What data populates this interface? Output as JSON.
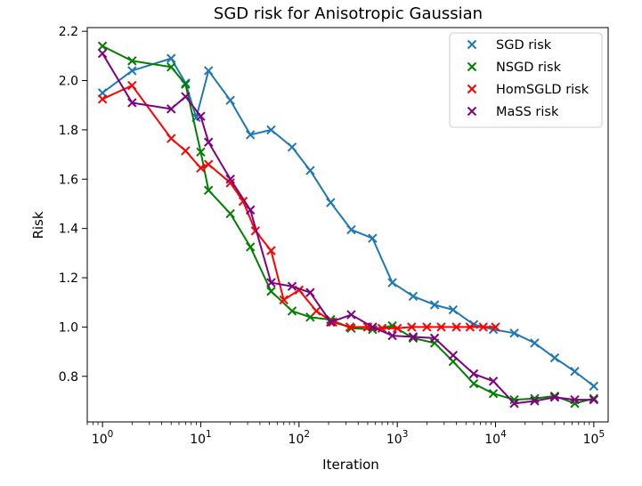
{
  "chart_data": {
    "type": "line",
    "title": "SGD risk for Anisotropic Gaussian",
    "xlabel": "Iteration",
    "ylabel": "Risk",
    "xscale": "log",
    "xlim": [
      0.7,
      140000
    ],
    "ylim": [
      0.615,
      2.215
    ],
    "xticks": [
      1,
      10,
      100,
      1000,
      10000,
      100000
    ],
    "xtick_labels": [
      "10^0",
      "10^1",
      "10^2",
      "10^3",
      "10^4",
      "10^5"
    ],
    "yticks": [
      0.8,
      1.0,
      1.2,
      1.4,
      1.6,
      1.8,
      2.0,
      2.2
    ],
    "ytick_labels": [
      "0.8",
      "1.0",
      "1.2",
      "1.4",
      "1.6",
      "1.8",
      "2.0",
      "2.2"
    ],
    "grid": false,
    "legend_position": "top-right",
    "marker": "x",
    "series": [
      {
        "name": "SGD risk",
        "color": "#1f77b4",
        "points": [
          [
            1,
            1.95
          ],
          [
            2,
            2.04
          ],
          [
            5,
            2.09
          ],
          [
            7,
            1.99
          ],
          [
            9,
            1.85
          ],
          [
            12,
            2.04
          ],
          [
            20,
            1.92
          ],
          [
            32,
            1.78
          ],
          [
            52,
            1.8
          ],
          [
            85,
            1.73
          ],
          [
            130,
            1.635
          ],
          [
            210,
            1.505
          ],
          [
            340,
            1.395
          ],
          [
            560,
            1.36
          ],
          [
            890,
            1.18
          ],
          [
            1450,
            1.125
          ],
          [
            2400,
            1.09
          ],
          [
            3700,
            1.07
          ],
          [
            6000,
            1.01
          ],
          [
            9500,
            0.99
          ],
          [
            15500,
            0.975
          ],
          [
            25000,
            0.935
          ],
          [
            40000,
            0.875
          ],
          [
            64000,
            0.82
          ],
          [
            100000,
            0.76
          ]
        ]
      },
      {
        "name": "NSGD risk",
        "color": "#008000",
        "points": [
          [
            1,
            2.14
          ],
          [
            2,
            2.08
          ],
          [
            5,
            2.055
          ],
          [
            7,
            1.985
          ],
          [
            10,
            1.71
          ],
          [
            12,
            1.555
          ],
          [
            20,
            1.46
          ],
          [
            32,
            1.325
          ],
          [
            52,
            1.145
          ],
          [
            85,
            1.065
          ],
          [
            130,
            1.04
          ],
          [
            210,
            1.03
          ],
          [
            340,
            0.995
          ],
          [
            560,
            0.99
          ],
          [
            890,
            1.005
          ],
          [
            1450,
            0.955
          ],
          [
            2400,
            0.935
          ],
          [
            3700,
            0.86
          ],
          [
            6000,
            0.77
          ],
          [
            9500,
            0.73
          ],
          [
            15500,
            0.705
          ],
          [
            25000,
            0.71
          ],
          [
            40000,
            0.72
          ],
          [
            64000,
            0.69
          ],
          [
            100000,
            0.71
          ]
        ]
      },
      {
        "name": "HomSGLD risk",
        "color": "#ff0000",
        "points": [
          [
            1,
            1.925
          ],
          [
            2,
            1.98
          ],
          [
            5,
            1.765
          ],
          [
            7,
            1.715
          ],
          [
            10,
            1.645
          ],
          [
            12,
            1.66
          ],
          [
            20,
            1.585
          ],
          [
            27,
            1.51
          ],
          [
            36,
            1.39
          ],
          [
            52,
            1.31
          ],
          [
            70,
            1.11
          ],
          [
            100,
            1.15
          ],
          [
            150,
            1.065
          ],
          [
            220,
            1.02
          ],
          [
            330,
            1.0
          ],
          [
            500,
            1.0
          ],
          [
            700,
            0.995
          ],
          [
            1000,
            0.995
          ],
          [
            1400,
            1.0
          ],
          [
            2000,
            1.0
          ],
          [
            2800,
            1.0
          ],
          [
            4000,
            1.0
          ],
          [
            5500,
            1.0
          ],
          [
            7500,
            1.0
          ],
          [
            10000,
            1.0
          ]
        ]
      },
      {
        "name": "MaSS risk",
        "color": "#800080",
        "points": [
          [
            1,
            2.11
          ],
          [
            2,
            1.91
          ],
          [
            5,
            1.885
          ],
          [
            7,
            1.935
          ],
          [
            10,
            1.855
          ],
          [
            12,
            1.75
          ],
          [
            20,
            1.6
          ],
          [
            32,
            1.475
          ],
          [
            52,
            1.18
          ],
          [
            85,
            1.165
          ],
          [
            130,
            1.14
          ],
          [
            210,
            1.02
          ],
          [
            340,
            1.05
          ],
          [
            560,
            1.0
          ],
          [
            890,
            0.965
          ],
          [
            1450,
            0.96
          ],
          [
            2400,
            0.955
          ],
          [
            3700,
            0.885
          ],
          [
            6000,
            0.81
          ],
          [
            9500,
            0.78
          ],
          [
            15500,
            0.69
          ],
          [
            25000,
            0.7
          ],
          [
            40000,
            0.715
          ],
          [
            64000,
            0.705
          ],
          [
            100000,
            0.705
          ]
        ]
      }
    ]
  }
}
